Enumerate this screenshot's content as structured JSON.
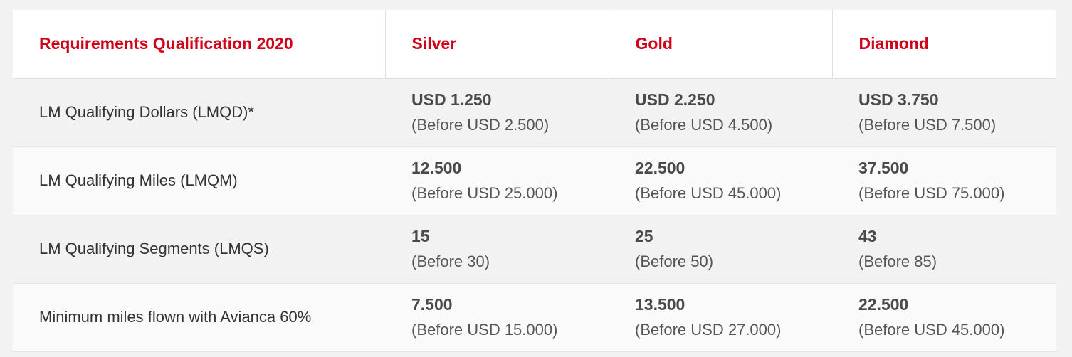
{
  "table": {
    "headers": [
      "Requirements Qualification 2020",
      "Silver",
      "Gold",
      "Diamond"
    ],
    "rows": [
      {
        "label": "LM Qualifying Dollars (LMQD)*",
        "cells": [
          {
            "main": "USD 1.250",
            "before": "(Before USD 2.500)"
          },
          {
            "main": "USD 2.250",
            "before": "(Before USD 4.500)"
          },
          {
            "main": "USD 3.750",
            "before": "(Before USD 7.500)"
          }
        ]
      },
      {
        "label": "LM Qualifying Miles (LMQM)",
        "cells": [
          {
            "main": "12.500",
            "before": "(Before USD 25.000)"
          },
          {
            "main": "22.500",
            "before": "(Before USD 45.000)"
          },
          {
            "main": "37.500",
            "before": "(Before USD 75.000)"
          }
        ]
      },
      {
        "label": "LM Qualifying Segments (LMQS)",
        "cells": [
          {
            "main": "15",
            "before": "(Before 30)"
          },
          {
            "main": "25",
            "before": "(Before 50)"
          },
          {
            "main": "43",
            "before": "(Before 85)"
          }
        ]
      },
      {
        "label": "Minimum miles flown with Avianca 60%",
        "cells": [
          {
            "main": "7.500",
            "before": "(Before USD 15.000)"
          },
          {
            "main": "13.500",
            "before": "(Before USD 27.000)"
          },
          {
            "main": "22.500",
            "before": "(Before USD 45.000)"
          }
        ]
      }
    ]
  },
  "colors": {
    "header_text": "#d0021b",
    "body_text": "#444444",
    "page_bg": "#f2f2f2"
  }
}
